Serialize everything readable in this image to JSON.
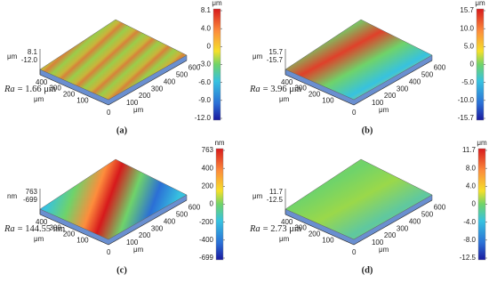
{
  "panels": [
    {
      "caption": "(a)",
      "unit": "μm",
      "colorbar_ticks": [
        "8.1",
        "4.0",
        "0",
        "-3.0",
        "-6.0",
        "-9.0",
        "-12.0"
      ],
      "z_unit": "μm",
      "z_labels": [
        "8.1",
        "-12.0"
      ],
      "x_ticks": [
        "100",
        "200",
        "300",
        "400",
        "500",
        "600"
      ],
      "y_ticks": [
        "100",
        "200",
        "300",
        "400"
      ],
      "origin": "0",
      "axis_unit": "μm",
      "ra": {
        "symbol": "Ra",
        "value": "= 1.66 μm"
      }
    },
    {
      "caption": "(b)",
      "unit": "μm",
      "colorbar_ticks": [
        "15.7",
        "10.0",
        "5.0",
        "0",
        "-5.0",
        "-10.0",
        "-15.7"
      ],
      "z_unit": "μm",
      "z_labels": [
        "15.7",
        "-15.7"
      ],
      "x_ticks": [
        "100",
        "200",
        "300",
        "400",
        "500",
        "600"
      ],
      "y_ticks": [
        "100",
        "200",
        "300",
        "400"
      ],
      "origin": "0",
      "axis_unit": "μm",
      "ra": {
        "symbol": "Ra",
        "value": "= 3.96 μm"
      }
    },
    {
      "caption": "(c)",
      "unit": "nm",
      "colorbar_ticks": [
        "763",
        "400",
        "200",
        "0",
        "-200",
        "-400",
        "-699"
      ],
      "z_unit": "nm",
      "z_labels": [
        "763",
        "-699"
      ],
      "x_ticks": [
        "100",
        "200",
        "300",
        "400",
        "500",
        "600"
      ],
      "y_ticks": [
        "100",
        "200",
        "300",
        "400"
      ],
      "origin": "0",
      "axis_unit": "μm",
      "ra": {
        "symbol": "Ra",
        "value": "= 144.55 nm"
      }
    },
    {
      "caption": "(d)",
      "unit": "μm",
      "colorbar_ticks": [
        "11.7",
        "8.0",
        "4.0",
        "0",
        "-4.0",
        "-8.0",
        "-12.5"
      ],
      "z_unit": "μm",
      "z_labels": [
        "11.7",
        "-12.5"
      ],
      "x_ticks": [
        "100",
        "200",
        "300",
        "400",
        "500",
        "600"
      ],
      "y_ticks": [
        "100",
        "200",
        "300",
        "400"
      ],
      "origin": "0",
      "axis_unit": "μm",
      "ra": {
        "symbol": "Ra",
        "value": "= 2.73 μm"
      }
    }
  ]
}
